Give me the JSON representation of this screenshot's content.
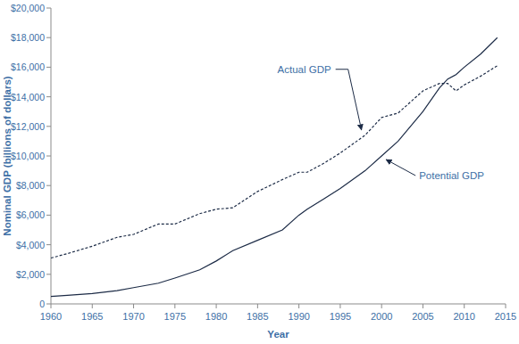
{
  "chart_data": {
    "type": "line",
    "x_label": "Year",
    "y_label": "Nominal GDP (billions of dollars)",
    "x": [
      1960,
      1962,
      1965,
      1968,
      1970,
      1973,
      1975,
      1978,
      1980,
      1982,
      1985,
      1988,
      1990,
      1991,
      1993,
      1995,
      1998,
      2000,
      2002,
      2005,
      2007,
      2008,
      2009,
      2010,
      2012,
      2014
    ],
    "series": [
      {
        "name": "Actual GDP",
        "color": "#1c2b46",
        "line_style": "dashed",
        "values": [
          3100,
          3400,
          3900,
          4500,
          4700,
          5400,
          5400,
          6100,
          6400,
          6500,
          7600,
          8400,
          8900,
          8900,
          9500,
          10200,
          11400,
          12600,
          12900,
          14400,
          14900,
          14900,
          14400,
          14800,
          15400,
          16100
        ]
      },
      {
        "name": "Potential GDP",
        "color": "#1c2b46",
        "line_style": "solid",
        "values": [
          500,
          580,
          700,
          900,
          1100,
          1400,
          1750,
          2300,
          2900,
          3600,
          4300,
          5000,
          6000,
          6400,
          7100,
          7800,
          9000,
          10000,
          11000,
          13000,
          14600,
          15200,
          15500,
          16000,
          16900,
          18000
        ]
      }
    ],
    "annotations": [
      {
        "text": "Actual GDP",
        "series": 0,
        "x": 1998
      },
      {
        "text": "Potential GDP",
        "series": 1,
        "x": 2000
      }
    ],
    "xlim": [
      1960,
      2015
    ],
    "xticks": [
      1960,
      1965,
      1970,
      1975,
      1980,
      1985,
      1990,
      1995,
      2000,
      2005,
      2010,
      2015
    ],
    "ylim": [
      0,
      20000
    ],
    "yticks": [
      0,
      {
        "value": 2000,
        "label": "$2,000"
      },
      {
        "value": 4000,
        "label": "$4,000"
      },
      {
        "value": 6000,
        "label": "$6,000"
      },
      {
        "value": 8000,
        "label": "$8,000"
      },
      {
        "value": 10000,
        "label": "$10,000"
      },
      {
        "value": 12000,
        "label": "$12,000"
      },
      {
        "value": 14000,
        "label": "$14,000"
      },
      {
        "value": 16000,
        "label": "$16,000"
      },
      {
        "value": 18000,
        "label": "$18,000"
      },
      {
        "value": 20000,
        "label": "$20,000"
      }
    ],
    "grid": false
  }
}
